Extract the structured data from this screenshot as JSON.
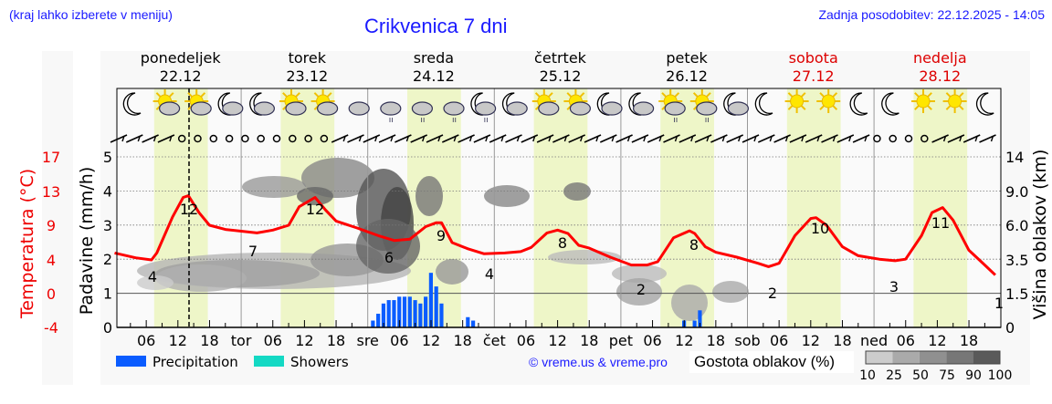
{
  "header": {
    "location_hint": "(kraj lahko izberete v meniju)",
    "title": "Crikvenica 7 dni",
    "updated": "Zadnja posodobitev: 22.12.2025 - 14:05"
  },
  "days": [
    {
      "name": "ponedeljek",
      "date": "22.12",
      "weekend": false,
      "abbr": ""
    },
    {
      "name": "torek",
      "date": "23.12",
      "weekend": false,
      "abbr": "tor"
    },
    {
      "name": "sreda",
      "date": "24.12",
      "weekend": false,
      "abbr": "sre"
    },
    {
      "name": "četrtek",
      "date": "25.12",
      "weekend": false,
      "abbr": "čet"
    },
    {
      "name": "petek",
      "date": "26.12",
      "weekend": false,
      "abbr": "pet"
    },
    {
      "name": "sobota",
      "date": "27.12",
      "weekend": true,
      "abbr": "sob"
    },
    {
      "name": "nedelja",
      "date": "28.12",
      "weekend": true,
      "abbr": "ned"
    }
  ],
  "axes": {
    "temp_label": "Temperatura (°C)",
    "temp_ticks": [
      "17",
      "13",
      "9",
      "4",
      "0",
      "-4"
    ],
    "precip_label": "Padavine (mm/h)",
    "precip_ticks": [
      "5",
      "4",
      "3",
      "2",
      "1",
      "0"
    ],
    "cloud_label": "Višina oblakov (km)",
    "cloud_ticks": [
      "14",
      "9.0",
      "6.0",
      "3.5",
      "1.5",
      "0"
    ],
    "hour_ticks": [
      "06",
      "12",
      "18"
    ]
  },
  "legend": {
    "precipitation": "Precipitation",
    "showers": "Showers",
    "precip_color": "#0a5cff",
    "showers_color": "#14d9c4",
    "copyright": "© vreme.us & vreme.pro",
    "cloud_density_label": "Gostota oblakov (%)",
    "cloud_density_ticks": [
      "10",
      "25",
      "50",
      "75",
      "90",
      "100"
    ]
  },
  "colors": {
    "temp_line": "#ff0000",
    "accent_text": "#1a1aff",
    "weekend": "#dd0000",
    "daylight": "#eef6c8"
  },
  "chart_data": {
    "type": "line",
    "title": "Crikvenica 7 dni",
    "xlabel": "",
    "ylabel": "Temperatura (°C) / Padavine (mm/h)",
    "x": [
      "22.12 00h",
      "22.12 07h",
      "22.12 13h",
      "23.12 05h",
      "23.12 14h",
      "24.12 04h",
      "24.12 13h",
      "24.12 22h",
      "25.12 13h",
      "26.12 04h",
      "26.12 13h",
      "27.12 04h",
      "27.12 13h",
      "28.12 04h",
      "28.12 13h",
      "28.12 23h"
    ],
    "series": [
      {
        "name": "Temperature (°C)",
        "values": [
          5,
          4,
          12,
          7,
          12,
          6,
          9,
          4,
          8,
          2,
          8,
          2,
          10,
          3,
          11,
          1
        ]
      },
      {
        "name": "Precipitation (mm/h)",
        "x": [
          "24.12 01h",
          "24.12 02h",
          "24.12 03h",
          "24.12 04h",
          "24.12 05h",
          "24.12 06h",
          "24.12 07h",
          "24.12 08h",
          "24.12 09h",
          "24.12 10h",
          "24.12 11h",
          "24.12 12h",
          "24.12 13h",
          "24.12 14h",
          "24.12 19h",
          "24.12 20h",
          "26.12 12h",
          "26.12 14h",
          "26.12 15h"
        ],
        "values": [
          0.2,
          0.4,
          0.7,
          0.8,
          0.8,
          0.9,
          0.9,
          0.9,
          0.8,
          0.7,
          0.9,
          1.6,
          1.2,
          0.7,
          0.3,
          0.2,
          0.2,
          0.2,
          0.5
        ]
      }
    ],
    "min_max_labels": [
      4,
      12,
      7,
      12,
      6,
      9,
      4,
      8,
      2,
      8,
      2,
      10,
      3,
      11,
      1
    ],
    "current_time_marker": "22.12 14:05",
    "ylim_precip": [
      0,
      5.5
    ],
    "ylim_temp": [
      -4,
      19
    ],
    "grid": true,
    "legend_position": "bottom"
  }
}
